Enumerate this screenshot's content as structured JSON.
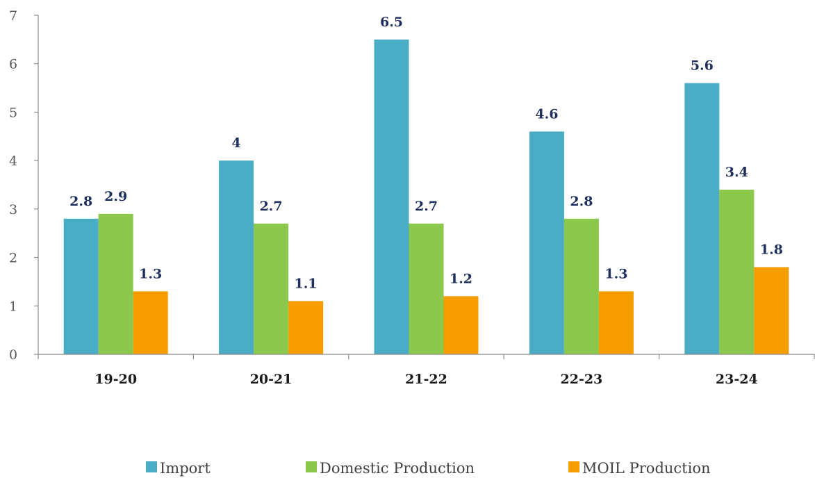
{
  "chart_data": {
    "type": "bar",
    "title": "",
    "xlabel": "",
    "ylabel": "",
    "ylim": [
      0,
      7
    ],
    "yticks": [
      "0",
      "1",
      "2",
      "3",
      "4",
      "5",
      "6",
      "7"
    ],
    "categories": [
      "19-20",
      "20-21",
      "21-22",
      "22-23",
      "23-24"
    ],
    "grid": false,
    "legend_position": "bottom",
    "series": [
      {
        "name": "Import",
        "color": "#4bacc6",
        "values": [
          2.8,
          4,
          6.5,
          4.6,
          5.6
        ],
        "labels": [
          "2.8",
          "4",
          "6.5",
          "4.6",
          "5.6"
        ]
      },
      {
        "name": "Domestic Production",
        "color": "#8cc84b",
        "values": [
          2.9,
          2.7,
          2.7,
          2.8,
          3.4
        ],
        "labels": [
          "2.9",
          "2.7",
          "2.7",
          "2.8",
          "3.4"
        ]
      },
      {
        "name": "MOIL Production",
        "color": "#f59d00",
        "values": [
          1.3,
          1.1,
          1.2,
          1.3,
          1.8
        ],
        "labels": [
          "1.3",
          "1.1",
          "1.2",
          "1.3",
          "1.8"
        ]
      }
    ]
  }
}
